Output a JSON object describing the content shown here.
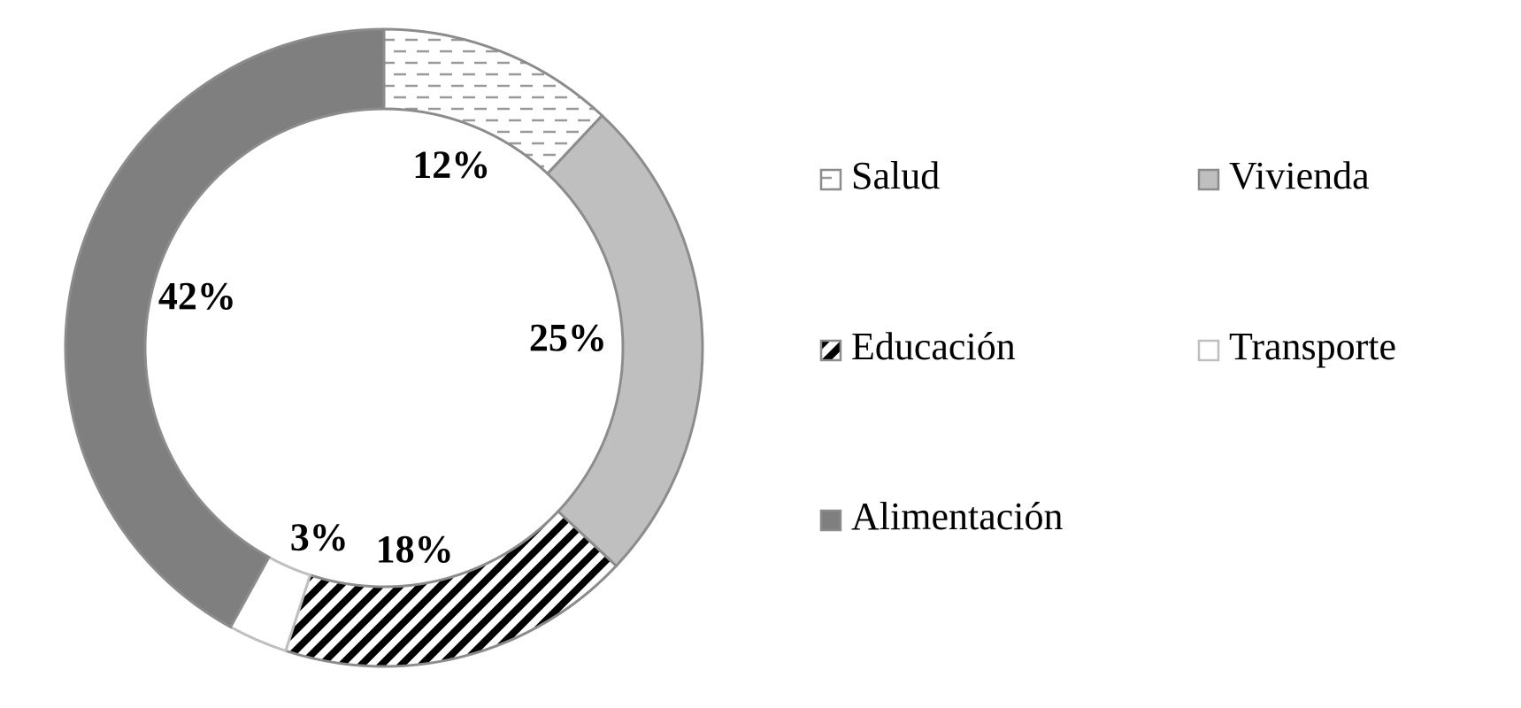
{
  "chart_data": {
    "type": "pie",
    "variant": "doughnut",
    "title": "",
    "categories": [
      "Salud",
      "Vivienda",
      "Educación",
      "Transporte",
      "Alimentación"
    ],
    "values": [
      12,
      25,
      18,
      3,
      42
    ],
    "value_labels": [
      "12%",
      "25%",
      "18%",
      "3%",
      "42%"
    ],
    "unit": "%",
    "legend_position": "right",
    "series": [
      {
        "name": "Salud",
        "value": 12,
        "label": "12%",
        "fill": "dashed",
        "color": "#999999"
      },
      {
        "name": "Vivienda",
        "value": 25,
        "label": "25%",
        "fill": "solid",
        "color": "#bfbfbf"
      },
      {
        "name": "Educación",
        "value": 18,
        "label": "18%",
        "fill": "diagonal-stripes",
        "color": "#000000"
      },
      {
        "name": "Transporte",
        "value": 3,
        "label": "3%",
        "fill": "solid",
        "color": "#ffffff"
      },
      {
        "name": "Alimentación",
        "value": 42,
        "label": "42%",
        "fill": "solid",
        "color": "#7f7f7f"
      }
    ]
  }
}
